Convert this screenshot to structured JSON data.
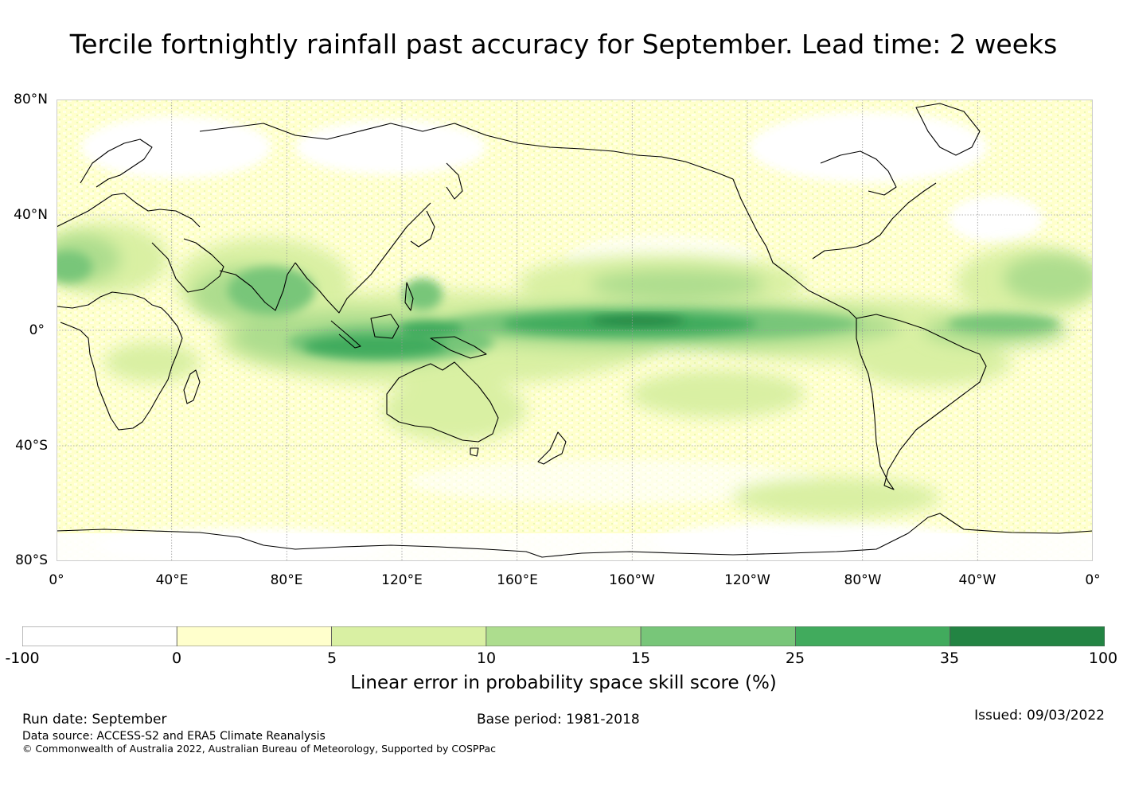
{
  "title": "Tercile fortnightly rainfall past accuracy for September. Lead time: 2 weeks",
  "map": {
    "lat_labels": [
      "80°N",
      "40°N",
      "0°",
      "40°S",
      "80°S"
    ],
    "lon_labels": [
      "0°",
      "40°E",
      "80°E",
      "120°E",
      "160°E",
      "160°W",
      "120°W",
      "80°W",
      "40°W",
      "0°"
    ]
  },
  "colorbar": {
    "title": "Linear error in probability space skill score (%)",
    "ticks": [
      "-100",
      "0",
      "5",
      "10",
      "15",
      "25",
      "35",
      "100"
    ],
    "colors": [
      "#ffffff",
      "#ffffcc",
      "#d9f0a3",
      "#addd8e",
      "#78c679",
      "#41ab5d",
      "#238443"
    ]
  },
  "colors": {
    "ocean_base": "#ffffcc",
    "coast": "#000000",
    "grid": "#999999"
  },
  "footer": {
    "run_date": "Run date: September",
    "base_period": "Base period: 1981-2018",
    "issued": "Issued: 09/03/2022",
    "data_source": "Data source: ACCESS-S2 and ERA5 Climate Reanalysis",
    "copyright": "© Commonwealth of Australia 2022, Australian Bureau of Meteorology, Supported by COSPPac"
  }
}
